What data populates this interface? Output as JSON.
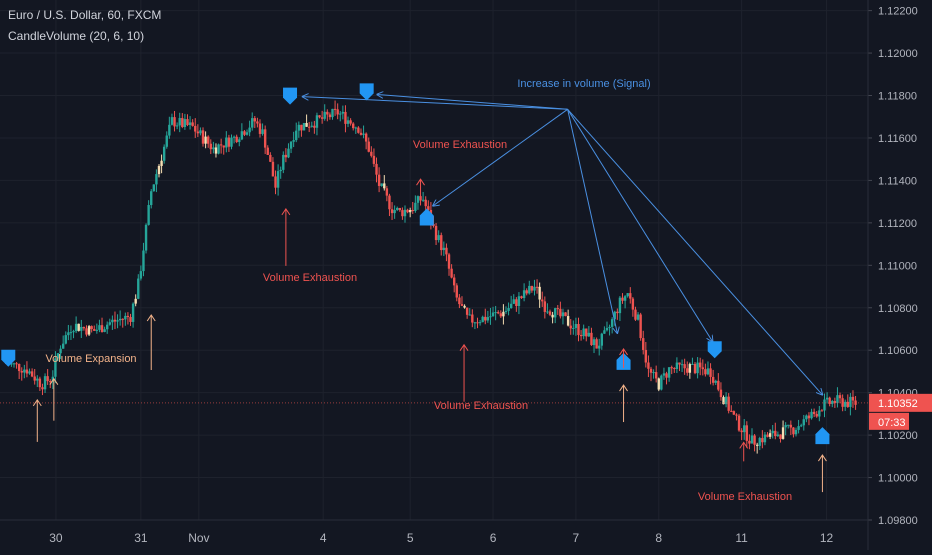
{
  "header": {
    "symbol_line": "Euro / U.S. Dollar, 60, FXCM",
    "indicator_line": "CandleVolume (20, 6, 10)"
  },
  "colors": {
    "background": "#131722",
    "grid": "#1e222d",
    "up_candle": "#26a69a",
    "down_candle": "#ef5350",
    "volume_candle": "#f5deb3",
    "signal": "#4a90e2",
    "signal_marker": "#2196f3",
    "exhaustion": "#ef5350",
    "expansion": "#f3b38a",
    "axis_text": "#b2b5be",
    "last_price_bg": "#ef5350"
  },
  "price_axis": {
    "current_price": "1.10352",
    "countdown": "07:33"
  },
  "annotations": {
    "signal_label": "Increase in volume (Signal)",
    "exhaustion_label": "Volume Exhaustion",
    "expansion_label": "Volume Expansion"
  },
  "chart_data": {
    "type": "candlestick",
    "title": "Euro / U.S. Dollar, 60, FXCM",
    "ylim": [
      1.098,
      1.1225
    ],
    "y_ticks": [
      "1.12200",
      "1.12000",
      "1.11800",
      "1.11600",
      "1.11400",
      "1.11200",
      "1.11000",
      "1.10800",
      "1.10600",
      "1.10400",
      "1.10200",
      "1.10000",
      "1.09800"
    ],
    "x_ticks": [
      "30",
      "31",
      "Nov",
      "4",
      "5",
      "6",
      "7",
      "8",
      "11",
      "12"
    ],
    "grid": true,
    "price_path": [
      {
        "t": 0,
        "p": 1.1054
      },
      {
        "t": 1,
        "p": 1.1051
      },
      {
        "t": 1.7,
        "p": 1.1044
      },
      {
        "t": 2.2,
        "p": 1.1047
      },
      {
        "t": 2.6,
        "p": 1.1062
      },
      {
        "t": 3.2,
        "p": 1.1072
      },
      {
        "t": 4.2,
        "p": 1.1069
      },
      {
        "t": 5,
        "p": 1.1073
      },
      {
        "t": 6,
        "p": 1.1076
      },
      {
        "t": 6.4,
        "p": 1.1092
      },
      {
        "t": 7,
        "p": 1.1135
      },
      {
        "t": 8,
        "p": 1.1168
      },
      {
        "t": 9,
        "p": 1.1165
      },
      {
        "t": 10,
        "p": 1.1155
      },
      {
        "t": 11,
        "p": 1.116
      },
      {
        "t": 12,
        "p": 1.1168
      },
      {
        "t": 12.4,
        "p": 1.1162
      },
      {
        "t": 13,
        "p": 1.1137
      },
      {
        "t": 13.3,
        "p": 1.1148
      },
      {
        "t": 14,
        "p": 1.1165
      },
      {
        "t": 15,
        "p": 1.1168
      },
      {
        "t": 16,
        "p": 1.1172
      },
      {
        "t": 17,
        "p": 1.1165
      },
      {
        "t": 17.5,
        "p": 1.1155
      },
      {
        "t": 18,
        "p": 1.1138
      },
      {
        "t": 18.6,
        "p": 1.1127
      },
      {
        "t": 19,
        "p": 1.1125
      },
      {
        "t": 19.6,
        "p": 1.1127
      },
      {
        "t": 20.1,
        "p": 1.1132
      },
      {
        "t": 20.6,
        "p": 1.1118
      },
      {
        "t": 21.2,
        "p": 1.1105
      },
      {
        "t": 21.7,
        "p": 1.1085
      },
      {
        "t": 22.3,
        "p": 1.1074
      },
      {
        "t": 23,
        "p": 1.1075
      },
      {
        "t": 24,
        "p": 1.1078
      },
      {
        "t": 25,
        "p": 1.1086
      },
      {
        "t": 25.5,
        "p": 1.109
      },
      {
        "t": 26,
        "p": 1.1081
      },
      {
        "t": 27,
        "p": 1.1074
      },
      {
        "t": 28,
        "p": 1.1067
      },
      {
        "t": 28.5,
        "p": 1.1062
      },
      {
        "t": 29,
        "p": 1.1068
      },
      {
        "t": 29.6,
        "p": 1.1082
      },
      {
        "t": 30,
        "p": 1.1087
      },
      {
        "t": 30.5,
        "p": 1.1074
      },
      {
        "t": 31,
        "p": 1.105
      },
      {
        "t": 31.5,
        "p": 1.1044
      },
      {
        "t": 32,
        "p": 1.1051
      },
      {
        "t": 33,
        "p": 1.1052
      },
      {
        "t": 34,
        "p": 1.105
      },
      {
        "t": 34.6,
        "p": 1.1038
      },
      {
        "t": 35.2,
        "p": 1.1027
      },
      {
        "t": 36,
        "p": 1.1017
      },
      {
        "t": 37,
        "p": 1.102
      },
      {
        "t": 38,
        "p": 1.1023
      },
      {
        "t": 39,
        "p": 1.103
      },
      {
        "t": 39.4,
        "p": 1.1034
      },
      {
        "t": 40,
        "p": 1.1036
      },
      {
        "t": 41,
        "p": 1.1035
      }
    ],
    "signal_markers": [
      {
        "t": 0.1,
        "p": 1.1056,
        "dir": "down"
      },
      {
        "t": 13.7,
        "p": 1.11795,
        "dir": "down"
      },
      {
        "t": 17.4,
        "p": 1.11815,
        "dir": "down"
      },
      {
        "t": 20.3,
        "p": 1.1123,
        "dir": "up"
      },
      {
        "t": 29.8,
        "p": 1.1055,
        "dir": "up"
      },
      {
        "t": 34.2,
        "p": 1.106,
        "dir": "down"
      },
      {
        "t": 39.4,
        "p": 1.102,
        "dir": "up"
      }
    ],
    "exhaustion_points": [
      {
        "t": 13.5,
        "p": 1.1128
      },
      {
        "t": 20.0,
        "p": 1.1142
      },
      {
        "t": 22.1,
        "p": 1.1064
      },
      {
        "t": 29.8,
        "p": 1.1062
      },
      {
        "t": 35.6,
        "p": 1.1018
      }
    ],
    "expansion_points": [
      {
        "t": 1.5,
        "p": 1.1038
      },
      {
        "t": 2.3,
        "p": 1.1048
      },
      {
        "t": 7.0,
        "p": 1.1078
      }
    ],
    "signal_source": {
      "t": 27.1,
      "p": 1.11735
    }
  }
}
